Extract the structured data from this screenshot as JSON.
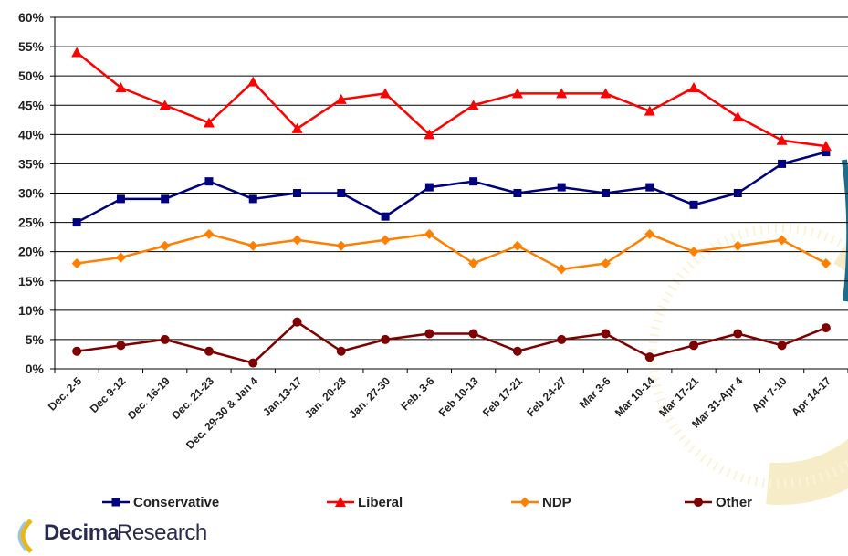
{
  "chart_data": {
    "type": "line",
    "categories": [
      "Dec. 2-5",
      "Dec 9-12",
      "Dec. 16-19",
      "Dec. 21-23",
      "Dec. 29-30 & Jan 4",
      "Jan.13-17",
      "Jan. 20-23",
      "Jan. 27-30",
      "Feb. 3-6",
      "Feb 10-13",
      "Feb 17-21",
      "Feb 24-27",
      "Mar 3-6",
      "Mar 10-14",
      "Mar 17-21",
      "Mar 31-Apr 4",
      "Apr 7-10",
      "Apr 14-17"
    ],
    "series": [
      {
        "name": "Conservative",
        "color": "#00007f",
        "marker": "square",
        "values": [
          25,
          29,
          29,
          32,
          29,
          30,
          30,
          26,
          31,
          32,
          30,
          31,
          30,
          31,
          28,
          30,
          35,
          37
        ]
      },
      {
        "name": "Liberal",
        "color": "#ff0000",
        "marker": "triangle",
        "values": [
          54,
          48,
          45,
          42,
          49,
          41,
          46,
          47,
          40,
          45,
          47,
          47,
          47,
          44,
          48,
          43,
          39,
          38
        ]
      },
      {
        "name": "NDP",
        "color": "#ff8000",
        "marker": "diamond",
        "values": [
          18,
          19,
          21,
          23,
          21,
          22,
          21,
          22,
          23,
          18,
          21,
          17,
          18,
          23,
          20,
          21,
          22,
          18
        ]
      },
      {
        "name": "Other",
        "color": "#7f0000",
        "marker": "circle",
        "values": [
          3,
          4,
          5,
          3,
          1,
          8,
          3,
          5,
          6,
          6,
          3,
          5,
          6,
          2,
          4,
          6,
          4,
          7
        ]
      }
    ],
    "yticks": [
      "0%",
      "5%",
      "10%",
      "15%",
      "20%",
      "25%",
      "30%",
      "35%",
      "40%",
      "45%",
      "50%",
      "55%",
      "60%"
    ],
    "ylim": [
      0,
      60
    ],
    "grid": true,
    "legend_position": "bottom"
  },
  "logo": {
    "strong": "Decima",
    "light": "Research"
  }
}
